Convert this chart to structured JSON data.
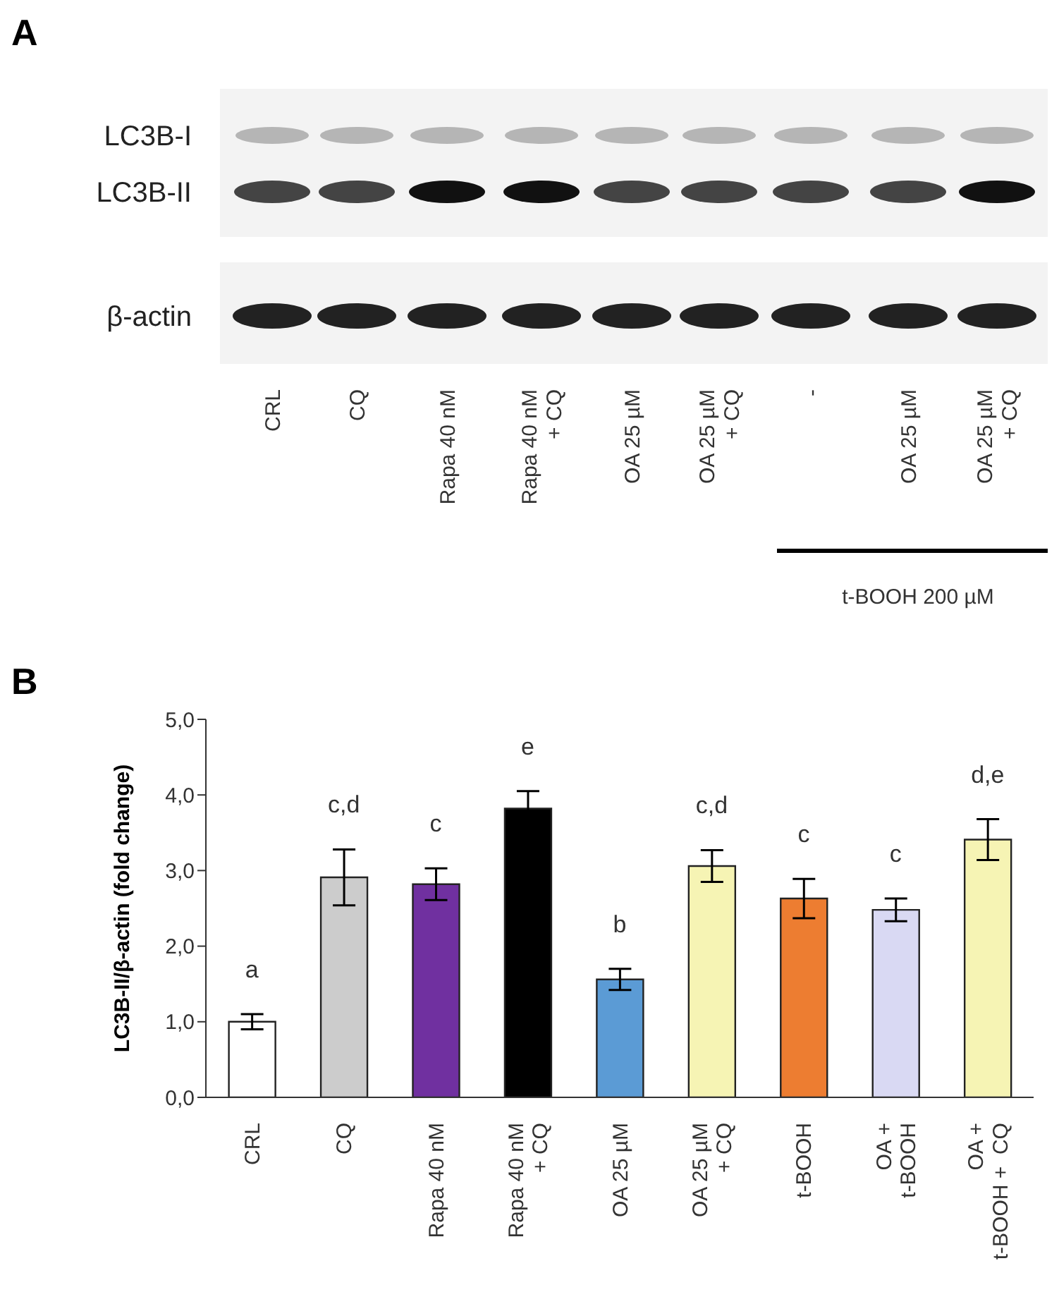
{
  "chart_data": [
    {
      "type": "other",
      "title": "A",
      "annotations": [
        "LC3B-I",
        "LC3B-II",
        "β-actin",
        "CRL",
        "CQ",
        "Rapa 40 nM",
        "Rapa 40 nM\n+ CQ",
        "OA 25 µM",
        "OA 25 µM\n+ CQ",
        "-",
        "OA 25 µM",
        "OA 25 µM\n+ CQ",
        "t-BOOH 200 µM"
      ]
    },
    {
      "type": "bar",
      "title": "B",
      "ylabel": "LC3B-II/β-actin (fold change)",
      "categories": [
        "CRL",
        "CQ",
        "Rapa 40 nM",
        "Rapa 40 nM\n+ CQ",
        "OA 25 µM",
        "OA 25 µM\n+ CQ",
        "t-BOOH",
        "OA +\nt-BOOH",
        "OA +\nt-BOOH +  CQ"
      ],
      "values": [
        1.0,
        2.91,
        2.82,
        3.82,
        1.56,
        3.06,
        2.63,
        2.48,
        3.41
      ],
      "errors": [
        0.1,
        0.37,
        0.21,
        0.23,
        0.14,
        0.21,
        0.26,
        0.15,
        0.27
      ],
      "colors": [
        "#ffffff",
        "#cccccc",
        "#7030a0",
        "#000000",
        "#5b9bd5",
        "#f6f4b4",
        "#ed7d31",
        "#d9d9f3",
        "#f6f4b4"
      ],
      "ylim": [
        0,
        5
      ],
      "yticks": [
        {
          "value": 0,
          "label": "0,0"
        },
        {
          "value": 1,
          "label": "1,0"
        },
        {
          "value": 2,
          "label": "2,0"
        },
        {
          "value": 3,
          "label": "3,0"
        },
        {
          "value": 4,
          "label": "4,0"
        },
        {
          "value": 5,
          "label": "5,0"
        }
      ],
      "grid": false,
      "legend": false,
      "annotations": [
        "a",
        "c,d",
        "c",
        "e",
        "b",
        "c,d",
        "c",
        "c",
        "d,e"
      ]
    }
  ]
}
